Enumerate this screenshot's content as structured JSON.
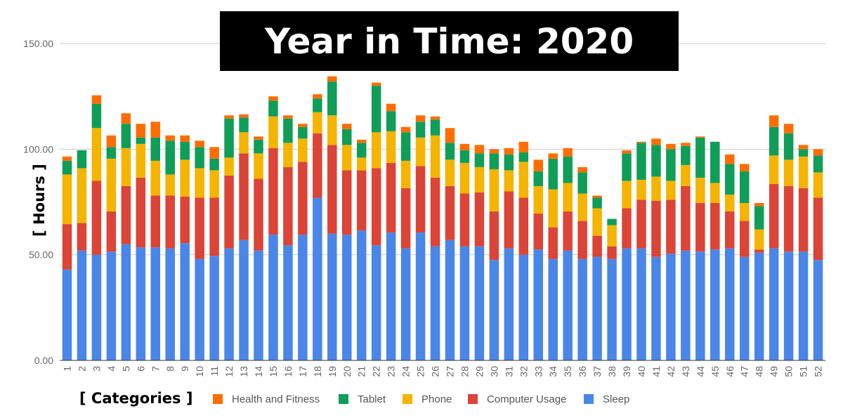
{
  "title": "Year in Time: 2020",
  "legend_title": "[ Categories ]",
  "colors": {
    "Sleep": "#4a86e8",
    "Computer Usage": "#db4437",
    "Phone": "#f4b400",
    "Tablet": "#0f9d58",
    "Health and Fitness": "#ff6d01",
    "grid": "#cccccc",
    "axis": "#333333",
    "tick_text": "#666666"
  },
  "chart_data": {
    "type": "bar",
    "stacked": true,
    "title": "Year in Time: 2020",
    "xlabel": "",
    "ylabel": "[ Hours ]",
    "ylim": [
      0,
      150
    ],
    "yticks": [
      "0.00",
      "50.00",
      "100.00",
      "150.00"
    ],
    "grid": true,
    "legend_position": "bottom",
    "categories": [
      "1",
      "2",
      "3",
      "4",
      "5",
      "6",
      "7",
      "8",
      "9",
      "10",
      "11",
      "12",
      "13",
      "14",
      "15",
      "16",
      "17",
      "18",
      "19",
      "20",
      "21",
      "22",
      "23",
      "24",
      "25",
      "26",
      "27",
      "28",
      "29",
      "30",
      "31",
      "32",
      "33",
      "34",
      "35",
      "36",
      "37",
      "38",
      "39",
      "40",
      "41",
      "42",
      "43",
      "44",
      "45",
      "46",
      "47",
      "48",
      "49",
      "50",
      "51",
      "52"
    ],
    "series": [
      {
        "name": "Sleep",
        "values": [
          43,
          52,
          50,
          51.5,
          55,
          53.5,
          53.5,
          53,
          55.5,
          48,
          49.5,
          53,
          57,
          52,
          59.5,
          54.5,
          59.5,
          77,
          60,
          59.5,
          61.5,
          54.5,
          60.5,
          53,
          60.5,
          54,
          57,
          54,
          54,
          47.5,
          53,
          50,
          52.5,
          48,
          52,
          48,
          49,
          48,
          53,
          53,
          49,
          50.5,
          52,
          51.5,
          52.5,
          53,
          49,
          51,
          53,
          51.5,
          51.5,
          47.5
        ]
      },
      {
        "name": "Computer Usage",
        "values": [
          21.5,
          13,
          35,
          19,
          27.5,
          33,
          24.5,
          25,
          22,
          29,
          27.5,
          34.5,
          41,
          34,
          41,
          37,
          34.5,
          30.5,
          42,
          30.5,
          28.5,
          36.5,
          33,
          28.5,
          31.5,
          32.5,
          25.5,
          25,
          25.5,
          23,
          27,
          27,
          17,
          15,
          18.5,
          18,
          10,
          6,
          19,
          23,
          26.5,
          25.5,
          30.5,
          23,
          22,
          17.5,
          17,
          1.5,
          30.5,
          31,
          30,
          29.5
        ]
      },
      {
        "name": "Phone",
        "values": [
          23.5,
          26,
          25,
          25,
          18,
          16,
          16.5,
          10,
          17.5,
          14,
          13,
          8.5,
          10,
          12,
          15,
          11.5,
          11,
          10,
          14,
          12,
          6,
          17,
          15,
          13,
          13.5,
          20,
          12.5,
          14.5,
          12,
          20,
          10,
          17,
          13,
          18,
          13.5,
          13,
          13,
          10,
          13,
          9.5,
          11.5,
          9,
          10,
          12,
          9.5,
          8,
          8.5,
          9.5,
          13.5,
          12.5,
          15,
          12
        ]
      },
      {
        "name": "Tablet",
        "values": [
          6.5,
          8.5,
          11.5,
          5.5,
          11.5,
          3,
          11,
          16,
          8.5,
          10,
          5.5,
          18.5,
          7,
          6.5,
          7.5,
          11.5,
          5.5,
          6.5,
          16,
          7.5,
          7,
          22,
          9.5,
          13.5,
          7.5,
          7.5,
          8,
          6,
          6.5,
          7.5,
          7.5,
          4.5,
          7,
          14.5,
          12.5,
          10,
          5,
          3,
          13,
          17.5,
          15,
          15,
          9,
          19,
          19.5,
          14.5,
          15,
          11,
          13.5,
          12.5,
          3.5,
          8
        ]
      },
      {
        "name": "Health and Fitness",
        "values": [
          2,
          0,
          4,
          5.5,
          5,
          6.5,
          7.5,
          2.5,
          3,
          3,
          5.5,
          1.5,
          1.5,
          1.5,
          2,
          1.5,
          1.5,
          2,
          2.5,
          2.5,
          1.5,
          1.5,
          3.5,
          2.5,
          3,
          1.5,
          7,
          3,
          4,
          2,
          3,
          5,
          5.5,
          2.5,
          4,
          2.5,
          1,
          0,
          1.5,
          0.5,
          3,
          2.5,
          1.5,
          0.5,
          0,
          4.5,
          3.5,
          1.5,
          5.5,
          4.5,
          2,
          3
        ]
      }
    ]
  }
}
